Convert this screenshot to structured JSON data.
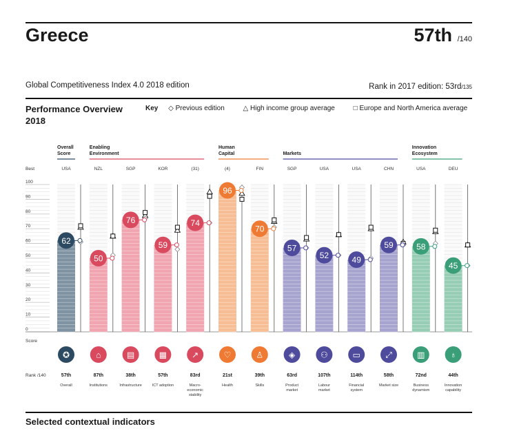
{
  "header": {
    "country": "Greece",
    "rank": "57th",
    "rank_total": "/140",
    "index_title": "Global Competitiveness Index 4.0 2018 edition",
    "prev_rank_label": "Rank in 2017 edition: 53rd",
    "prev_rank_total": "/135"
  },
  "overview": {
    "title": "Performance Overview 2018",
    "key_label": "Key",
    "key_items": [
      "Previous edition",
      "High income group average",
      "Europe and North America average"
    ],
    "best_label": "Best",
    "score_label": "Score",
    "rank_label": "Rank /140"
  },
  "groups": [
    {
      "name": "Overall Score",
      "color": "#2d4a63"
    },
    {
      "name": "Enabling Environment",
      "color": "#d94a5f"
    },
    {
      "name": "Human Capital",
      "color": "#ef7a33"
    },
    {
      "name": "Markets",
      "color": "#4e4a9c"
    },
    {
      "name": "Innovation Ecosystem",
      "color": "#3a9e78"
    }
  ],
  "footer": {
    "selected": "Selected contextual indicators"
  },
  "chart_data": {
    "type": "bar",
    "ylim": [
      0,
      100
    ],
    "yticks": [
      0,
      10,
      20,
      30,
      40,
      50,
      60,
      70,
      80,
      90,
      100
    ],
    "categories": [
      "Overall",
      "Institutions",
      "Infrastructure",
      "ICT adoption",
      "Macro-economic stability",
      "Health",
      "Skills",
      "Product market",
      "Labour market",
      "Financial system",
      "Market size",
      "Business dynamism",
      "Innovation capability"
    ],
    "values": [
      62,
      50,
      76,
      59,
      74,
      96,
      70,
      57,
      52,
      49,
      59,
      58,
      45
    ],
    "best": [
      "USA",
      "NZL",
      "SGP",
      "KOR",
      "(31)",
      "(4)",
      "FIN",
      "SGP",
      "USA",
      "USA",
      "CHN",
      "USA",
      "DEU"
    ],
    "ranks": [
      "57th",
      "87th",
      "38th",
      "57th",
      "83rd",
      "21st",
      "39th",
      "63rd",
      "107th",
      "114th",
      "58th",
      "72nd",
      "44th"
    ],
    "previous_edition": [
      61,
      52,
      77,
      56,
      74,
      98,
      71,
      57,
      52,
      50,
      59,
      60,
      45
    ],
    "high_income_avg": [
      71,
      65,
      79,
      69,
      95,
      94,
      75,
      63,
      66,
      70,
      61,
      68,
      59
    ],
    "europe_na_avg": [
      72,
      65,
      81,
      71,
      92,
      90,
      76,
      64,
      66,
      71,
      60,
      69,
      59
    ],
    "pillar_group": [
      0,
      1,
      1,
      1,
      1,
      2,
      2,
      3,
      3,
      3,
      3,
      4,
      4
    ],
    "icons": [
      "medal-icon",
      "institution-icon",
      "train-icon",
      "chip-icon",
      "growth-arrow-icon",
      "heart-icon",
      "graduate-icon",
      "tag-icon",
      "people-icon",
      "card-icon",
      "expand-icon",
      "building-icon",
      "bulb-icon"
    ]
  }
}
